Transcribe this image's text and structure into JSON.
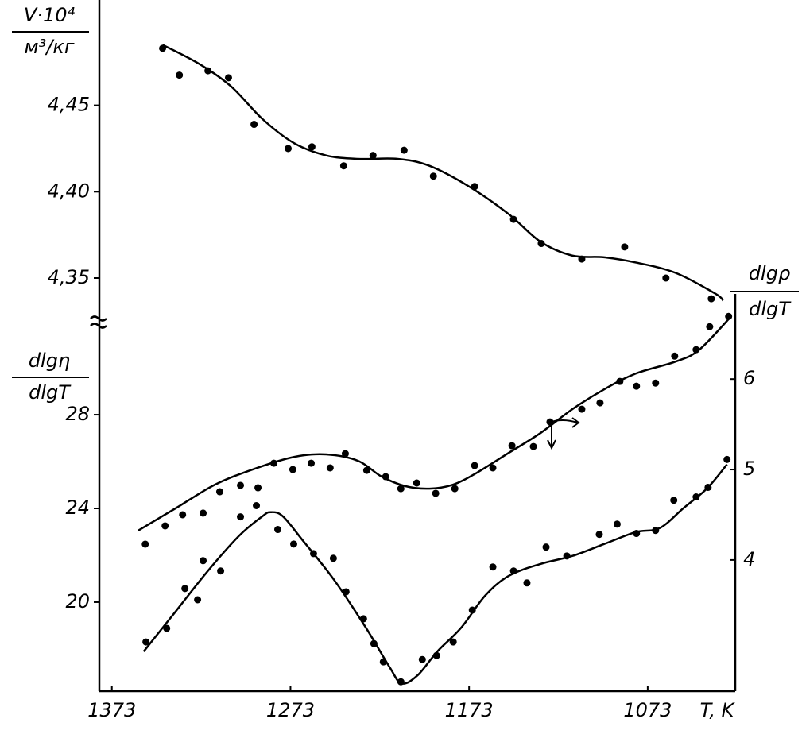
{
  "chart_data": [
    {
      "type": "scatter",
      "ylabel": {
        "numerator": "V·10⁴",
        "denominator": "м³/кг"
      },
      "xlim": [
        1380,
        1024
      ],
      "ylim": [
        4.327,
        4.511
      ],
      "yticks": [
        {
          "value": 4.45,
          "label": "4,45"
        },
        {
          "value": 4.4,
          "label": "4,40"
        },
        {
          "value": 4.35,
          "label": "4,35"
        }
      ],
      "color": "#000000",
      "series": [
        {
          "mode": "markers",
          "x": [
            1344.6,
            1335.2,
            1319.2,
            1307.7,
            1293.4,
            1274.3,
            1261.0,
            1243.2,
            1226.8,
            1209.4,
            1193.0,
            1169.9,
            1148.1,
            1132.6,
            1109.9,
            1085.9,
            1062.8,
            1037.4
          ],
          "values": [
            4.483,
            4.4675,
            4.47,
            4.466,
            4.439,
            4.425,
            4.426,
            4.415,
            4.421,
            4.424,
            4.409,
            4.403,
            4.384,
            4.37,
            4.361,
            4.368,
            4.35,
            4.338
          ]
        },
        {
          "mode": "line",
          "x": [
            1344.6,
            1324.1,
            1306.3,
            1288.6,
            1270.8,
            1253.0,
            1235.2,
            1213.0,
            1195.2,
            1173.0,
            1150.8,
            1133.0,
            1115.2,
            1097.4,
            1079.7,
            1057.4,
            1035.2,
            1030.8
          ],
          "values": [
            4.485,
            4.474,
            4.461,
            4.442,
            4.428,
            4.421,
            4.419,
            4.419,
            4.415,
            4.403,
            4.387,
            4.371,
            4.363,
            4.362,
            4.359,
            4.353,
            4.341,
            4.337
          ]
        }
      ]
    },
    {
      "type": "scatter",
      "xlabel": "T, K",
      "ylabel": {
        "numerator": "dlgη",
        "denominator": "dlgT"
      },
      "y2label": {
        "numerator": "dlgρ",
        "denominator": "dlgT"
      },
      "xlim": [
        1380,
        1024
      ],
      "xticks": [
        1373,
        1273,
        1173,
        1073
      ],
      "ylim": [
        16.2,
        31.8
      ],
      "yticks": [
        20,
        24,
        28
      ],
      "y2lim": [
        2.55,
        6.59
      ],
      "y2ticks": [
        4,
        5,
        6
      ],
      "color": "#000000",
      "series": [
        {
          "mode": "markers",
          "axis": "y2",
          "x": [
            1354.3,
            1343.2,
            1333.4,
            1321.9,
            1312.6,
            1301.0,
            1291.2,
            1282.3,
            1271.7,
            1261.4,
            1250.8,
            1242.3,
            1230.3,
            1219.7,
            1211.2,
            1202.3,
            1191.7,
            1181.0,
            1169.9,
            1159.7,
            1149.0,
            1137.0,
            1127.7,
            1109.9,
            1099.7,
            1088.6,
            1079.3,
            1068.6,
            1057.9,
            1045.9,
            1038.3,
            1027.7
          ],
          "values": [
            4.175,
            4.377,
            4.5,
            4.518,
            4.754,
            4.825,
            4.798,
            5.07,
            5.0,
            5.07,
            5.018,
            5.175,
            4.991,
            4.921,
            4.789,
            4.851,
            4.737,
            4.789,
            5.044,
            5.018,
            5.263,
            5.254,
            5.526,
            5.667,
            5.737,
            5.974,
            5.921,
            5.956,
            6.254,
            6.325,
            6.579,
            6.693
          ]
        },
        {
          "mode": "line",
          "axis": "y2",
          "x": [
            1358.3,
            1337.4,
            1315.2,
            1293.0,
            1270.8,
            1253.0,
            1235.2,
            1221.9,
            1208.6,
            1195.2,
            1181.9,
            1168.6,
            1150.8,
            1133.0,
            1115.2,
            1097.4,
            1079.7,
            1057.4,
            1044.1,
            1026.3
          ],
          "values": [
            4.325,
            4.57,
            4.833,
            5.009,
            5.14,
            5.167,
            5.096,
            4.921,
            4.816,
            4.789,
            4.833,
            4.965,
            5.184,
            5.404,
            5.667,
            5.886,
            6.061,
            6.193,
            6.325,
            6.693
          ]
        },
        {
          "mode": "markers",
          "x": [
            1353.9,
            1342.3,
            1332.1,
            1325.0,
            1321.9,
            1312.1,
            1301.0,
            1292.1,
            1280.1,
            1271.2,
            1260.1,
            1249.0,
            1241.9,
            1232.1,
            1226.3,
            1221.0,
            1211.2,
            1199.2,
            1191.2,
            1181.9,
            1171.2,
            1159.7,
            1148.1,
            1140.6,
            1129.9,
            1118.3,
            1100.1,
            1090.1,
            1079.3,
            1068.6,
            1058.4,
            1045.9,
            1039.2,
            1028.6
          ],
          "values": [
            18.3,
            18.88,
            20.58,
            20.1,
            21.77,
            21.33,
            23.64,
            24.12,
            23.1,
            22.48,
            22.07,
            21.87,
            20.44,
            19.29,
            18.23,
            17.45,
            16.6,
            17.55,
            17.72,
            18.3,
            19.66,
            21.5,
            21.33,
            20.82,
            22.35,
            21.97,
            22.89,
            23.33,
            22.93,
            23.06,
            24.35,
            24.49,
            24.9,
            26.09
          ]
        },
        {
          "mode": "line",
          "x": [
            1355.2,
            1337.4,
            1319.7,
            1301.9,
            1288.6,
            1284.1,
            1277.4,
            1266.3,
            1248.6,
            1230.8,
            1217.4,
            1210.8,
            1201.9,
            1190.8,
            1177.4,
            1164.1,
            1150.8,
            1133.0,
            1115.2,
            1097.4,
            1079.7,
            1066.3,
            1053.0,
            1039.7,
            1028.6
          ],
          "values": [
            17.89,
            19.59,
            21.29,
            22.82,
            23.67,
            23.84,
            23.67,
            22.65,
            20.95,
            18.91,
            17.21,
            16.53,
            16.87,
            17.89,
            18.91,
            20.27,
            21.12,
            21.63,
            21.97,
            22.48,
            22.99,
            23.16,
            24.01,
            24.86,
            25.88
          ]
        }
      ]
    }
  ]
}
